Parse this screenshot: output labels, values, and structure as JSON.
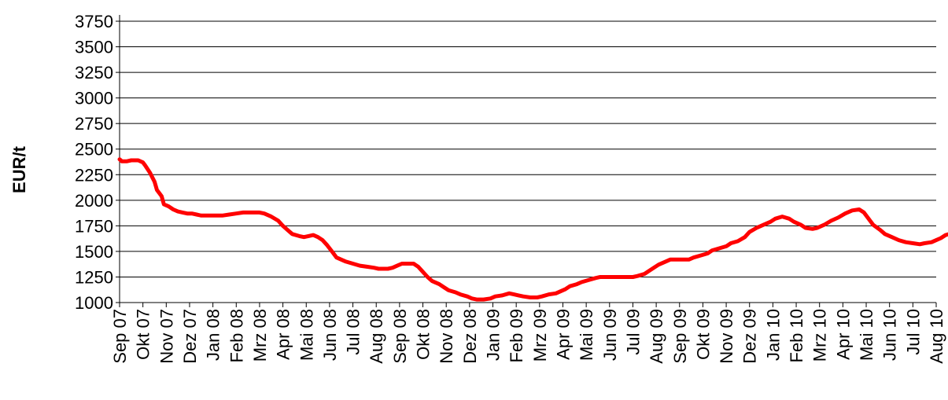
{
  "chart_data": {
    "type": "line",
    "title": "",
    "xlabel": "",
    "ylabel": "EUR/t",
    "ylim": [
      1000,
      3750
    ],
    "yticks": [
      1000,
      1250,
      1500,
      1750,
      2000,
      2250,
      2500,
      2750,
      3000,
      3250,
      3500,
      3750
    ],
    "grid": true,
    "line_color": "#ff0000",
    "categories": [
      "Sep 07",
      "Okt 07",
      "Nov 07",
      "Dez 07",
      "Jan 08",
      "Feb 08",
      "Mrz 08",
      "Apr 08",
      "Mai 08",
      "Jun 08",
      "Jul 08",
      "Aug 08",
      "Sep 08",
      "Okt 08",
      "Nov 08",
      "Dez 08",
      "Jan 09",
      "Feb 09",
      "Mrz 09",
      "Apr 09",
      "Mai 09",
      "Jun 09",
      "Jul 09",
      "Aug 09",
      "Sep 09",
      "Okt 09",
      "Nov 09",
      "Dez 09",
      "Jan 10",
      "Feb 10",
      "Mrz 10",
      "Apr 10",
      "Mai 10",
      "Jun 10",
      "Jul 10",
      "Aug 10"
    ],
    "series": [
      {
        "points": [
          [
            0,
            2400
          ],
          [
            0.1,
            2380
          ],
          [
            0.3,
            2380
          ],
          [
            0.5,
            2390
          ],
          [
            0.8,
            2390
          ],
          [
            1.0,
            2370
          ],
          [
            1.1,
            2340
          ],
          [
            1.3,
            2270
          ],
          [
            1.5,
            2180
          ],
          [
            1.6,
            2100
          ],
          [
            1.8,
            2040
          ],
          [
            1.9,
            1960
          ],
          [
            2.1,
            1940
          ],
          [
            2.3,
            1910
          ],
          [
            2.5,
            1890
          ],
          [
            2.7,
            1880
          ],
          [
            2.9,
            1870
          ],
          [
            3.1,
            1870
          ],
          [
            3.3,
            1860
          ],
          [
            3.5,
            1850
          ],
          [
            3.7,
            1850
          ],
          [
            4.0,
            1850
          ],
          [
            4.4,
            1850
          ],
          [
            4.7,
            1860
          ],
          [
            5.0,
            1870
          ],
          [
            5.3,
            1880
          ],
          [
            5.6,
            1880
          ],
          [
            6.0,
            1880
          ],
          [
            6.2,
            1870
          ],
          [
            6.5,
            1840
          ],
          [
            6.8,
            1800
          ],
          [
            7.0,
            1750
          ],
          [
            7.2,
            1710
          ],
          [
            7.4,
            1670
          ],
          [
            7.7,
            1650
          ],
          [
            7.9,
            1640
          ],
          [
            8.1,
            1650
          ],
          [
            8.3,
            1660
          ],
          [
            8.5,
            1640
          ],
          [
            8.7,
            1610
          ],
          [
            8.9,
            1560
          ],
          [
            9.1,
            1500
          ],
          [
            9.3,
            1440
          ],
          [
            9.5,
            1420
          ],
          [
            9.7,
            1400
          ],
          [
            10.0,
            1380
          ],
          [
            10.3,
            1360
          ],
          [
            10.6,
            1350
          ],
          [
            10.9,
            1340
          ],
          [
            11.1,
            1330
          ],
          [
            11.3,
            1330
          ],
          [
            11.5,
            1330
          ],
          [
            11.7,
            1340
          ],
          [
            11.9,
            1360
          ],
          [
            12.1,
            1380
          ],
          [
            12.4,
            1380
          ],
          [
            12.6,
            1380
          ],
          [
            12.8,
            1350
          ],
          [
            13.0,
            1300
          ],
          [
            13.2,
            1250
          ],
          [
            13.4,
            1210
          ],
          [
            13.7,
            1180
          ],
          [
            13.9,
            1150
          ],
          [
            14.1,
            1120
          ],
          [
            14.4,
            1100
          ],
          [
            14.6,
            1080
          ],
          [
            14.9,
            1060
          ],
          [
            15.1,
            1040
          ],
          [
            15.3,
            1030
          ],
          [
            15.6,
            1030
          ],
          [
            15.9,
            1040
          ],
          [
            16.1,
            1060
          ],
          [
            16.4,
            1070
          ],
          [
            16.7,
            1090
          ],
          [
            16.9,
            1080
          ],
          [
            17.1,
            1070
          ],
          [
            17.3,
            1060
          ],
          [
            17.6,
            1050
          ],
          [
            17.9,
            1050
          ],
          [
            18.1,
            1060
          ],
          [
            18.4,
            1080
          ],
          [
            18.7,
            1090
          ],
          [
            18.9,
            1110
          ],
          [
            19.1,
            1130
          ],
          [
            19.3,
            1160
          ],
          [
            19.6,
            1180
          ],
          [
            19.8,
            1200
          ],
          [
            20.1,
            1220
          ],
          [
            20.4,
            1240
          ],
          [
            20.6,
            1250
          ],
          [
            21.0,
            1250
          ],
          [
            21.5,
            1250
          ],
          [
            22.0,
            1250
          ],
          [
            22.2,
            1260
          ],
          [
            22.5,
            1280
          ],
          [
            22.7,
            1310
          ],
          [
            22.9,
            1340
          ],
          [
            23.1,
            1370
          ],
          [
            23.4,
            1400
          ],
          [
            23.6,
            1420
          ],
          [
            24.0,
            1420
          ],
          [
            24.4,
            1420
          ],
          [
            24.6,
            1440
          ],
          [
            24.9,
            1460
          ],
          [
            25.2,
            1480
          ],
          [
            25.4,
            1510
          ],
          [
            25.7,
            1530
          ],
          [
            26.0,
            1550
          ],
          [
            26.2,
            1580
          ],
          [
            26.5,
            1600
          ],
          [
            26.8,
            1640
          ],
          [
            27.0,
            1690
          ],
          [
            27.3,
            1730
          ],
          [
            27.6,
            1760
          ],
          [
            27.9,
            1790
          ],
          [
            28.1,
            1820
          ],
          [
            28.4,
            1840
          ],
          [
            28.7,
            1820
          ],
          [
            28.9,
            1790
          ],
          [
            29.2,
            1760
          ],
          [
            29.4,
            1730
          ],
          [
            29.7,
            1720
          ],
          [
            29.9,
            1730
          ],
          [
            30.2,
            1760
          ],
          [
            30.5,
            1800
          ],
          [
            30.8,
            1830
          ],
          [
            31.1,
            1870
          ],
          [
            31.4,
            1900
          ],
          [
            31.7,
            1910
          ],
          [
            31.9,
            1880
          ],
          [
            32.1,
            1820
          ],
          [
            32.3,
            1760
          ],
          [
            32.6,
            1710
          ],
          [
            32.8,
            1670
          ],
          [
            33.1,
            1640
          ],
          [
            33.4,
            1610
          ],
          [
            33.7,
            1590
          ],
          [
            34.0,
            1580
          ],
          [
            34.3,
            1570
          ],
          [
            34.5,
            1580
          ],
          [
            34.8,
            1590
          ],
          [
            35.0,
            1610
          ],
          [
            35.2,
            1630
          ],
          [
            35.4,
            1660
          ],
          [
            35.7,
            1680
          ],
          [
            36.0,
            1710
          ]
        ]
      }
    ]
  }
}
